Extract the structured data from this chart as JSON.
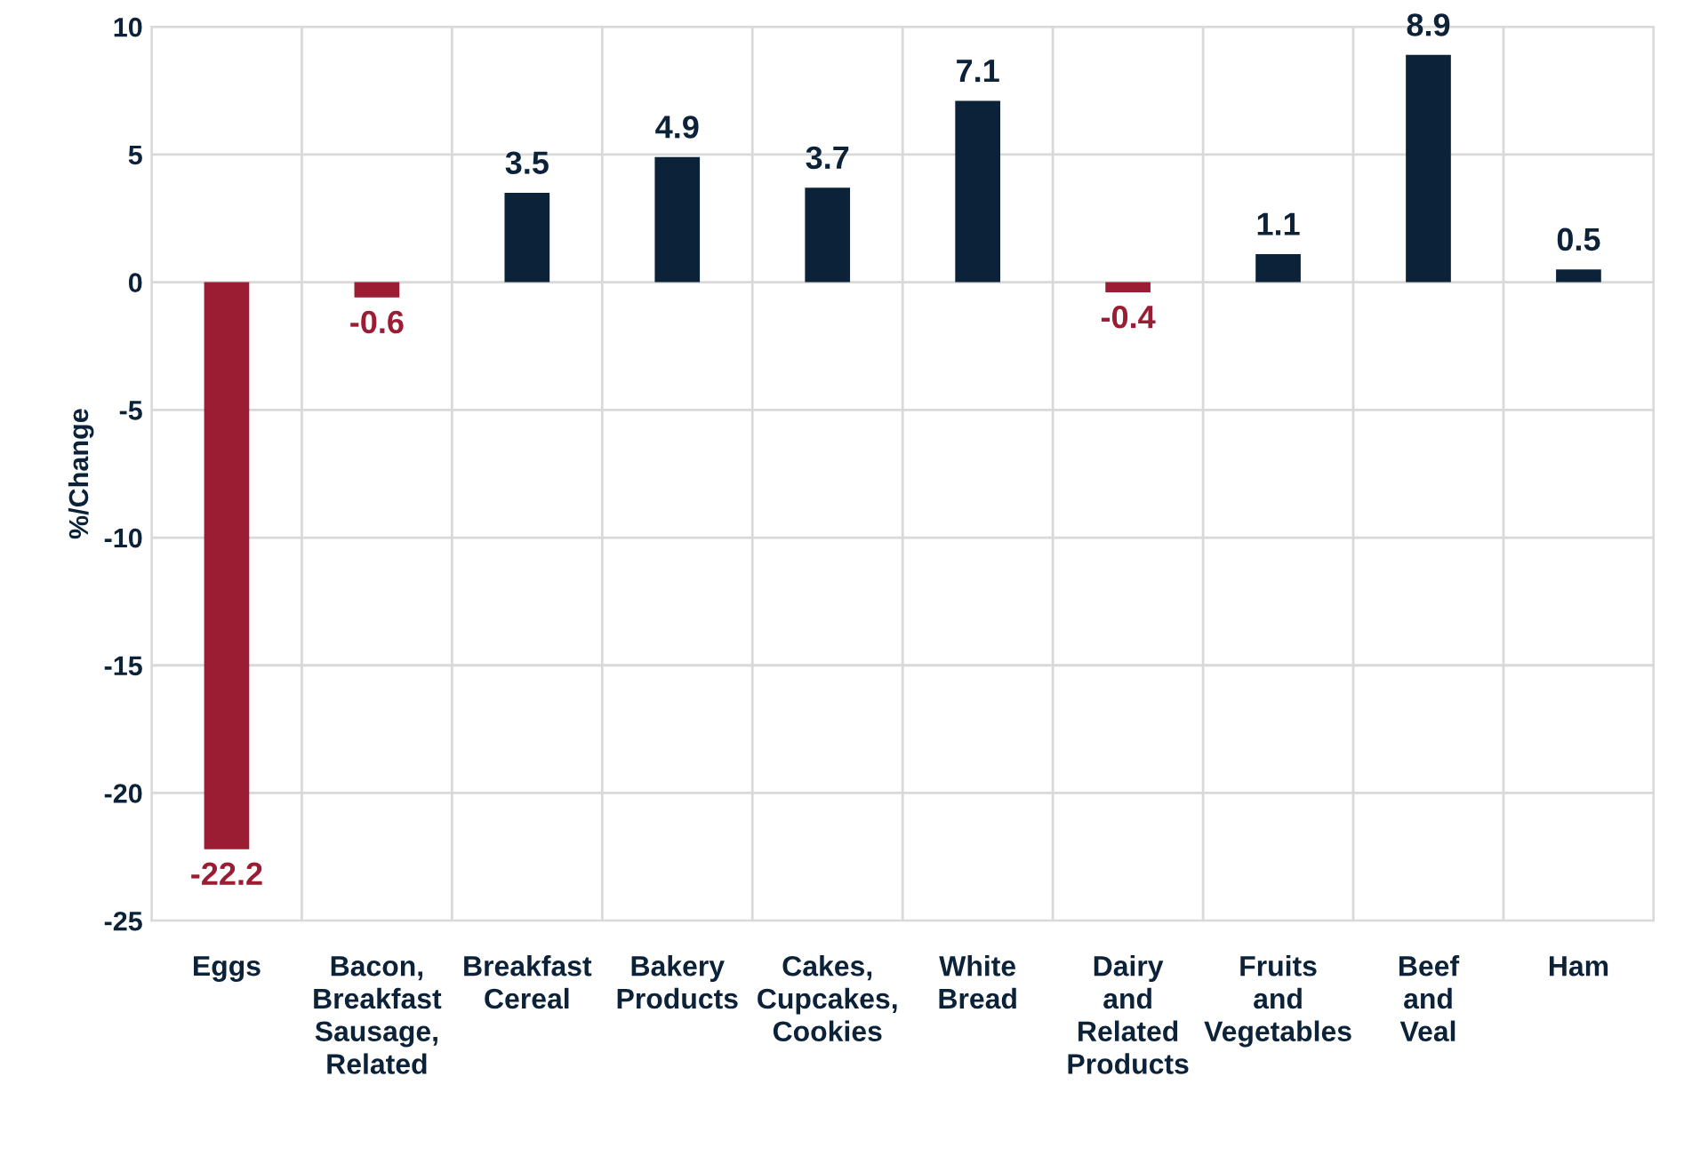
{
  "chart_data": {
    "type": "bar",
    "ylabel": "%/Change",
    "categories": [
      "Eggs",
      "Bacon,\nBreakfast\nSausage,\nRelated",
      "Breakfast\nCereal",
      "Bakery\nProducts",
      "Cakes,\nCupcakes,\nCookies",
      "White\nBread",
      "Dairy\nand\nRelated\nProducts",
      "Fruits\nand\nVegetables",
      "Beef\nand\nVeal",
      "Ham"
    ],
    "values": [
      -22.2,
      -0.6,
      3.5,
      4.9,
      3.7,
      7.1,
      -0.4,
      1.1,
      8.9,
      0.5
    ],
    "colors": [
      "#9b1d33",
      "#9b1d33",
      "#0b2239",
      "#0b2239",
      "#0b2239",
      "#0b2239",
      "#9b1d33",
      "#0b2239",
      "#0b2239",
      "#0b2239"
    ],
    "ylim": [
      -25,
      10
    ],
    "yticks": [
      -25,
      -20,
      -15,
      -10,
      -5,
      0,
      5,
      10
    ],
    "grid": true,
    "data_labels": true
  }
}
